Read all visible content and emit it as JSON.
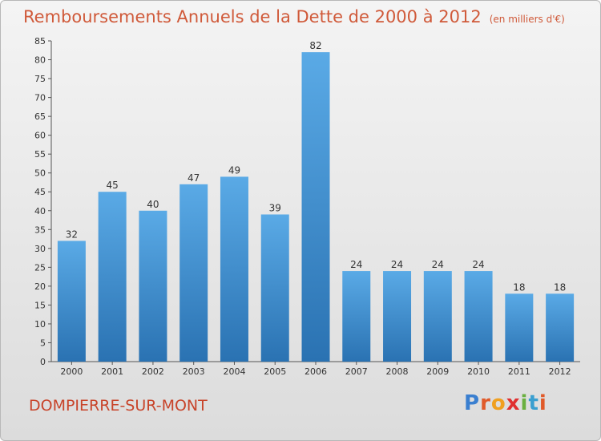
{
  "header": {
    "title": "Remboursements Annuels de la Dette de 2000 à 2012",
    "unit": "(en milliers d'€)"
  },
  "footer": {
    "place": "DOMPIERRE-SUR-MONT",
    "logo": "Proxiti"
  },
  "colors": {
    "title": "#d05a3a",
    "bar_top": "#5aaae6",
    "bar_bottom": "#2a72b2",
    "logo": [
      "#3a7fd0",
      "#e05a2a",
      "#f0a020",
      "#e03030",
      "#6ab040",
      "#3a9fd0",
      "#e05a2a"
    ]
  },
  "chart_data": {
    "type": "bar",
    "categories": [
      "2000",
      "2001",
      "2002",
      "2003",
      "2004",
      "2005",
      "2006",
      "2007",
      "2008",
      "2009",
      "2010",
      "2011",
      "2012"
    ],
    "values": [
      32,
      45,
      40,
      47,
      49,
      39,
      82,
      24,
      24,
      24,
      24,
      18,
      18
    ],
    "ylim": [
      0,
      85
    ],
    "yticks": [
      0,
      5,
      10,
      15,
      20,
      25,
      30,
      35,
      40,
      45,
      50,
      55,
      60,
      65,
      70,
      75,
      80,
      85
    ],
    "grid": false,
    "data_labels": true
  }
}
